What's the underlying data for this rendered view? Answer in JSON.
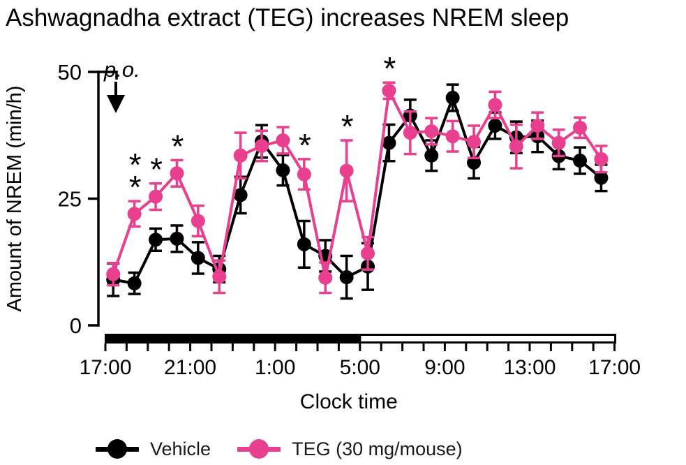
{
  "title": "Ashwagnadha extract (TEG) increases NREM sleep",
  "annotation": {
    "dose_label": "p.o."
  },
  "legend": {
    "items": [
      {
        "label": "Vehicle",
        "color": "#000000"
      },
      {
        "label": "TEG (30 mg/mouse)",
        "color": "#e83f8e"
      }
    ]
  },
  "chart_data": {
    "type": "line",
    "title": "Ashwagnadha extract (TEG) increases NREM sleep",
    "xlabel": "Clock time",
    "ylabel": "Amount of NREM (min/h)",
    "ylim": [
      0,
      50
    ],
    "yticks": [
      0,
      25,
      50
    ],
    "x_unit": "hours after 17:00, hourly bins",
    "categories": [
      "18:00",
      "19:00",
      "20:00",
      "21:00",
      "22:00",
      "23:00",
      "0:00",
      "1:00",
      "2:00",
      "3:00",
      "4:00",
      "5:00",
      "6:00",
      "7:00",
      "8:00",
      "9:00",
      "10:00",
      "11:00",
      "12:00",
      "13:00",
      "14:00",
      "15:00",
      "16:00",
      "17:00"
    ],
    "xtick_labels": [
      "17:00",
      "21:00",
      "1:00",
      "5:00",
      "9:00",
      "13:00",
      "17:00"
    ],
    "xtick_hours": [
      0,
      4,
      8,
      12,
      16,
      20,
      24
    ],
    "grid": false,
    "legend_position": "bottom",
    "dark_phase": {
      "start": "17:00",
      "end": "5:00",
      "fill": "#000000"
    },
    "light_phase": {
      "start": "5:00",
      "end": "17:00",
      "fill": "#ffffff"
    },
    "series": [
      {
        "name": "Vehicle",
        "color": "#000000",
        "values": [
          9.0,
          8.3,
          16.9,
          17.1,
          13.3,
          11.1,
          25.7,
          36.3,
          30.6,
          16.0,
          13.7,
          9.5,
          11.6,
          36.0,
          41.4,
          33.5,
          44.9,
          32.1,
          39.4,
          37.1,
          37.3,
          33.4,
          32.5,
          29.1
        ],
        "errors": [
          3.2,
          2.1,
          2.2,
          2.6,
          3.1,
          2.6,
          3.6,
          3.2,
          3.0,
          4.6,
          3.1,
          4.2,
          4.6,
          3.6,
          3.1,
          3.0,
          2.6,
          3.1,
          2.6,
          3.1,
          3.1,
          2.6,
          2.6,
          2.6
        ],
        "significance": []
      },
      {
        "name": "TEG (30 mg/mouse)",
        "color": "#e83f8e",
        "values": [
          10.1,
          22.0,
          25.4,
          30.0,
          20.6,
          9.6,
          33.5,
          35.4,
          36.5,
          29.8,
          9.4,
          30.5,
          14.2,
          46.3,
          38.0,
          38.3,
          37.3,
          36.2,
          43.5,
          35.3,
          39.4,
          36.0,
          39.0,
          32.8
        ],
        "errors": [
          2.2,
          2.5,
          2.6,
          2.6,
          3.0,
          3.2,
          4.5,
          3.0,
          2.6,
          3.0,
          3.0,
          6.0,
          3.2,
          1.6,
          4.2,
          2.6,
          3.0,
          3.2,
          2.6,
          4.3,
          2.6,
          2.6,
          2.0,
          2.6
        ],
        "significance": [
          {
            "index": 1,
            "stars": 2
          },
          {
            "index": 2,
            "stars": 1
          },
          {
            "index": 3,
            "stars": 1
          },
          {
            "index": 9,
            "stars": 1
          },
          {
            "index": 11,
            "stars": 1
          },
          {
            "index": 13,
            "stars": 1
          }
        ]
      }
    ],
    "star_symbol": "*"
  }
}
